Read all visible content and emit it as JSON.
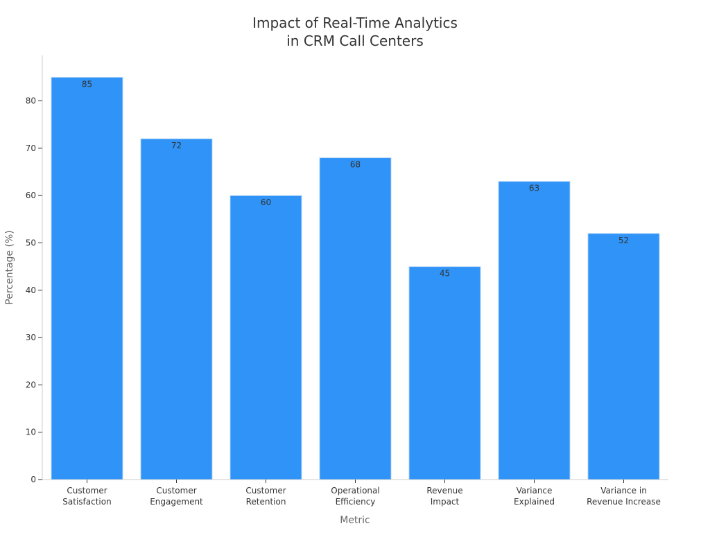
{
  "chart_data": {
    "type": "bar",
    "title_lines": [
      "Impact of Real-Time Analytics",
      "in CRM Call Centers"
    ],
    "xlabel": "Metric",
    "ylabel": "Percentage (%)",
    "categories": [
      [
        "Customer",
        "Satisfaction"
      ],
      [
        "Customer",
        "Engagement"
      ],
      [
        "Customer",
        "Retention"
      ],
      [
        "Operational",
        "Efficiency"
      ],
      [
        "Revenue",
        "Impact"
      ],
      [
        "Variance",
        "Explained"
      ],
      [
        "Variance in",
        "Revenue Increase"
      ]
    ],
    "values": [
      85,
      72,
      60,
      68,
      45,
      63,
      52
    ],
    "yticks": [
      0,
      10,
      20,
      30,
      40,
      50,
      60,
      70,
      80
    ],
    "ylim": [
      0,
      89.6
    ],
    "grid": false,
    "legend": "none",
    "colors": {
      "bar": "#2f93f7",
      "bar_edge": "#c6dff7",
      "axis": "#cccccc",
      "text": "#333333",
      "label": "#666666"
    }
  }
}
